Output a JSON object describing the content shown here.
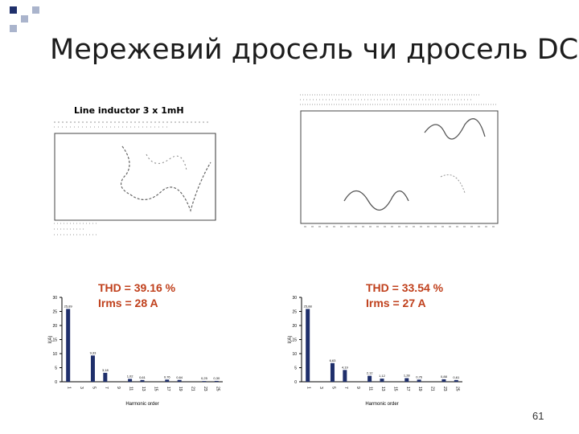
{
  "slide": {
    "title": "Мережевий дросель чи дросель DC",
    "page_number": "61",
    "accent_color": "#1f2f6b",
    "accent_light": "#aab4cc"
  },
  "left_scope": {
    "caption": "Line inductor 3 x 1mH"
  },
  "right_scope": {},
  "left_stats": {
    "thd": "THD = 39.16 %",
    "irms": "Irms = 28 A"
  },
  "right_stats": {
    "thd": "THD = 33.54 %",
    "irms": "Irms = 27 A"
  },
  "chart_data": [
    {
      "type": "bar",
      "categories": [
        "1",
        "3",
        "5",
        "7",
        "9",
        "11",
        "13",
        "15",
        "17",
        "19",
        "21",
        "23",
        "25"
      ],
      "values": [
        25.89,
        0,
        9.33,
        3.18,
        0,
        1.02,
        0.61,
        0,
        0.76,
        0.64,
        0,
        0.25,
        0.3
      ],
      "value_labels": [
        "25,89",
        "",
        "9,33",
        "3,18",
        "",
        "1,02",
        "0,61",
        "",
        "0,76",
        "0,64",
        "",
        "0,25",
        "0,30"
      ],
      "xlabel": "Harmonic order",
      "ylabel": "I(A)",
      "ylim": [
        0,
        30
      ],
      "yticks": [
        0,
        5,
        10,
        15,
        20,
        25,
        30
      ],
      "color": "#1f2f6b",
      "grid": false
    },
    {
      "type": "bar",
      "categories": [
        "1",
        "3",
        "5",
        "7",
        "9",
        "11",
        "13",
        "15",
        "17",
        "19",
        "21",
        "23",
        "25"
      ],
      "values": [
        25.88,
        0,
        6.63,
        4.19,
        0,
        2.12,
        1.12,
        0,
        1.28,
        0.76,
        0,
        0.88,
        0.61
      ],
      "value_labels": [
        "25,88",
        "",
        "6,63",
        "4,19",
        "",
        "2,12",
        "1,12",
        "",
        "1,28",
        "0,76",
        "",
        "0,88",
        "0,61"
      ],
      "xlabel": "Harmonic order",
      "ylabel": "I(A)",
      "ylim": [
        0,
        30
      ],
      "yticks": [
        0,
        5,
        10,
        15,
        20,
        25,
        30
      ],
      "color": "#1f2f6b",
      "grid": false
    }
  ]
}
